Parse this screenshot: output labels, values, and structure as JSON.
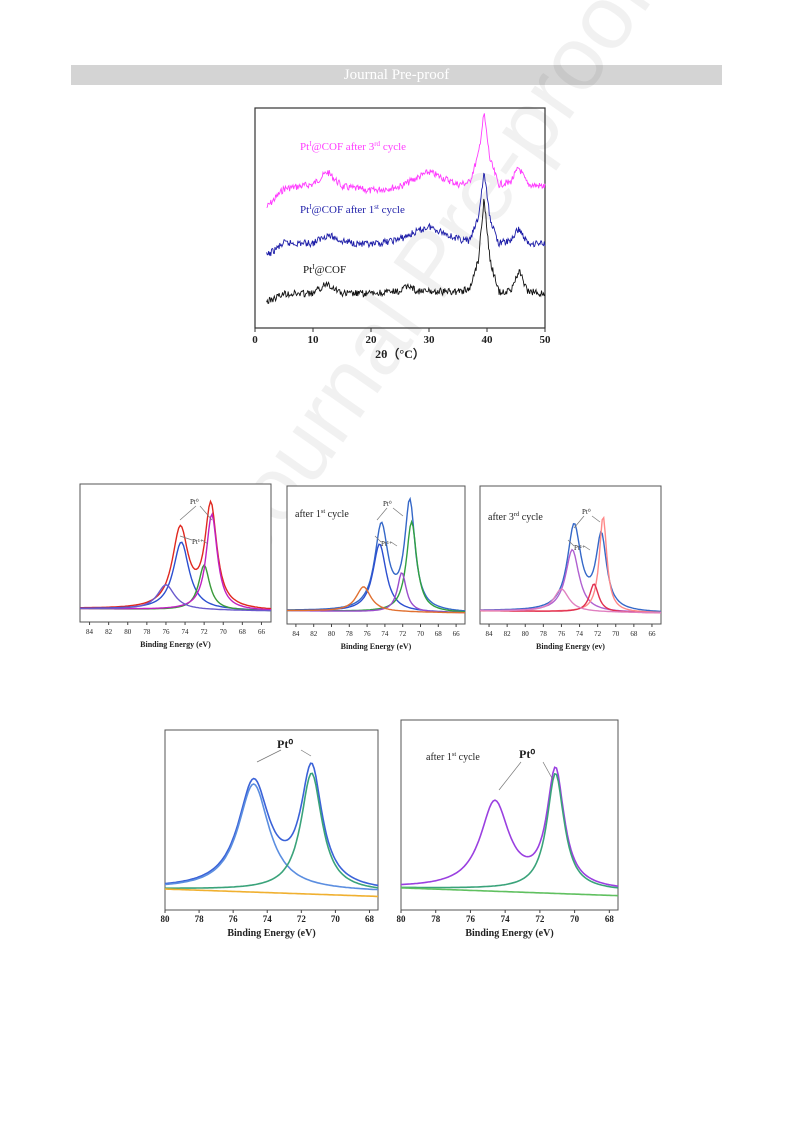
{
  "header": {
    "text": "Journal Pre-proof"
  },
  "watermark": {
    "text": "Journal Pre-proof"
  },
  "chart_data": [
    {
      "type": "line",
      "id": "xrd",
      "xlabel": "2θ（°C）",
      "xticks": [
        "0",
        "10",
        "20",
        "30",
        "40",
        "50"
      ],
      "xlim": [
        0,
        50
      ],
      "grid": false,
      "series": [
        {
          "name": "Pt¹@COF after 3ʳᵈ cycle",
          "label_main": "Pt",
          "sup1": "I",
          "label_mid": "@COF after 3",
          "sup2": "rd",
          "label_end": " cycle",
          "color": "#ff3dff",
          "x": [
            2,
            5,
            10,
            12.5,
            15,
            20,
            25,
            30,
            35,
            37,
            38.5,
            39.5,
            40.5,
            42,
            44,
            45.5,
            47,
            50
          ],
          "y": [
            0.55,
            0.64,
            0.66,
            0.72,
            0.65,
            0.63,
            0.65,
            0.72,
            0.66,
            0.67,
            0.8,
            1.0,
            0.78,
            0.66,
            0.67,
            0.74,
            0.66,
            0.65
          ]
        },
        {
          "name": "Pt¹@COF after 1ˢᵗ cycle",
          "label_main": "Pt",
          "sup1": "I",
          "label_mid": "@COF after 1",
          "sup2": "st",
          "label_end": " cycle",
          "color": "#1e1ea8",
          "x": [
            2,
            5,
            10,
            12.5,
            15,
            20,
            25,
            30,
            35,
            37,
            38.5,
            39.5,
            40.5,
            42,
            44,
            45.5,
            47,
            50
          ],
          "y": [
            0.32,
            0.38,
            0.38,
            0.42,
            0.39,
            0.37,
            0.4,
            0.46,
            0.4,
            0.39,
            0.5,
            0.72,
            0.5,
            0.38,
            0.39,
            0.45,
            0.38,
            0.38
          ]
        },
        {
          "name": "Pt¹@COF",
          "label_main": "Pt",
          "sup1": "I",
          "label_mid": "@COF",
          "sup2": "",
          "label_end": "",
          "color": "#111111",
          "x": [
            2,
            5,
            10,
            12.5,
            15,
            20,
            25,
            26.5,
            28,
            30,
            35,
            37,
            38.5,
            39.5,
            40.5,
            42,
            44,
            45.5,
            47,
            50
          ],
          "y": [
            0.1,
            0.14,
            0.14,
            0.19,
            0.14,
            0.14,
            0.15,
            0.18,
            0.15,
            0.15,
            0.15,
            0.16,
            0.3,
            0.6,
            0.3,
            0.15,
            0.15,
            0.25,
            0.15,
            0.14
          ]
        }
      ]
    },
    {
      "type": "line",
      "id": "xps-a",
      "xlabel": "Binding Energy (eV)",
      "xticks": [
        "84",
        "82",
        "80",
        "78",
        "76",
        "74",
        "72",
        "70",
        "68",
        "66"
      ],
      "xlim": [
        85,
        65
      ],
      "annotations": [
        "Pt⁰",
        "Pt¹⁺"
      ],
      "title": "",
      "series": [
        {
          "color": "#e0281f",
          "peaks": [
            [
              74.5,
              0.7,
              1.0
            ],
            [
              71.3,
              0.9,
              0.75
            ]
          ]
        },
        {
          "color": "#2c4fd0",
          "peaks": [
            [
              74.4,
              0.6,
              1.0
            ]
          ]
        },
        {
          "color": "#3a9a3a",
          "peaks": [
            [
              72.0,
              0.4,
              0.7
            ]
          ]
        },
        {
          "color": "#c020c0",
          "peaks": [
            [
              71.2,
              0.85,
              0.7
            ]
          ]
        },
        {
          "color": "#6a5acd",
          "peaks": [
            [
              76.0,
              0.22,
              1.1
            ]
          ]
        }
      ]
    },
    {
      "type": "line",
      "id": "xps-b",
      "xlabel": "Binding Energy (eV)",
      "xticks": [
        "84",
        "82",
        "80",
        "78",
        "76",
        "74",
        "72",
        "70",
        "68",
        "66"
      ],
      "xlim": [
        85,
        65
      ],
      "title": "after 1st cycle",
      "annotations": [
        "Pt⁰",
        "Pt¹⁺"
      ],
      "series": [
        {
          "color": "#3568c8",
          "peaks": [
            [
              74.4,
              0.75,
              0.9
            ],
            [
              71.2,
              0.95,
              0.7
            ]
          ]
        },
        {
          "color": "#2c4fd0",
          "peaks": [
            [
              74.6,
              0.6,
              0.9
            ]
          ]
        },
        {
          "color": "#30a040",
          "peaks": [
            [
              71.0,
              0.8,
              0.7
            ]
          ]
        },
        {
          "color": "#9a4dcc",
          "peaks": [
            [
              72.1,
              0.35,
              0.6
            ]
          ]
        },
        {
          "color": "#e07030",
          "peaks": [
            [
              76.4,
              0.22,
              1.0
            ]
          ]
        }
      ]
    },
    {
      "type": "line",
      "id": "xps-c",
      "xlabel": "Binding Energy (ev)",
      "xticks": [
        "84",
        "82",
        "80",
        "78",
        "76",
        "74",
        "72",
        "70",
        "68",
        "66"
      ],
      "xlim": [
        85,
        65
      ],
      "title": "after 3rd cycle",
      "annotations": [
        "Pt⁰",
        "Pt¹⁺"
      ],
      "series": [
        {
          "color": "#3568c8",
          "peaks": [
            [
              74.6,
              0.75,
              0.9
            ],
            [
              71.6,
              0.65,
              0.7
            ]
          ]
        },
        {
          "color": "#b060d0",
          "peaks": [
            [
              74.8,
              0.55,
              0.9
            ]
          ]
        },
        {
          "color": "#ff8888",
          "peaks": [
            [
              71.4,
              0.85,
              0.5
            ]
          ]
        },
        {
          "color": "#e03050",
          "peaks": [
            [
              72.4,
              0.25,
              0.6
            ]
          ]
        },
        {
          "color": "#e080c0",
          "peaks": [
            [
              76.0,
              0.2,
              1.0
            ]
          ]
        }
      ]
    },
    {
      "type": "line",
      "id": "xps-d",
      "xlabel": "Binding Energy (eV)",
      "xticks": [
        "80",
        "78",
        "76",
        "74",
        "72",
        "70",
        "68"
      ],
      "xlim": [
        80,
        67.5
      ],
      "title": "",
      "annotations": [
        "Pt⁰"
      ],
      "series": [
        {
          "color": "#3a62d8",
          "peaks": [
            [
              74.8,
              0.72,
              1.1
            ],
            [
              71.4,
              0.8,
              0.75
            ]
          ]
        },
        {
          "color": "#5b8ee0",
          "peaks": [
            [
              74.8,
              0.72,
              1.1
            ]
          ]
        },
        {
          "color": "#3aa37a",
          "peaks": [
            [
              71.4,
              0.8,
              0.75
            ]
          ]
        },
        {
          "color": "#f0b030",
          "peaks": []
        }
      ]
    },
    {
      "type": "line",
      "id": "xps-e",
      "xlabel": "Binding Energy (eV)",
      "xticks": [
        "80",
        "78",
        "76",
        "74",
        "72",
        "70",
        "68"
      ],
      "xlim": [
        80,
        67.5
      ],
      "title": "after 1st cycle",
      "annotations": [
        "Pt⁰"
      ],
      "series": [
        {
          "color": "#9a40e0",
          "peaks": [
            [
              74.6,
              0.55,
              1.0
            ],
            [
              71.1,
              0.75,
              0.6
            ]
          ]
        },
        {
          "color": "#3aa37a",
          "peaks": [
            [
              71.1,
              0.75,
              0.6
            ]
          ]
        },
        {
          "color": "#60c060",
          "peaks": []
        }
      ]
    }
  ]
}
